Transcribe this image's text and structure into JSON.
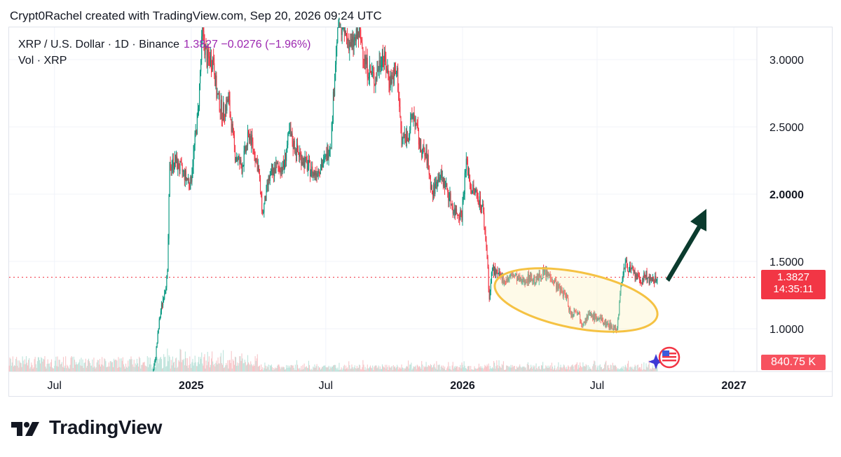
{
  "header": {
    "text": "Crypt0Rachel created with TradingView.com, Sep 20, 2026 09:24 UTC"
  },
  "legend": {
    "symbol": "XRP / U.S. Dollar · 1D · Binance",
    "values": "1.3827  −0.0276 (−1.96%)",
    "volume": "Vol · XRP"
  },
  "price_tag": {
    "price": "1.3827",
    "countdown": "14:35:11",
    "color": "#f23645"
  },
  "volume_tag": {
    "text": "840.75 K",
    "color": "#f7525f"
  },
  "footer": {
    "brand": "TradingView"
  },
  "colors": {
    "up": "#089981",
    "down": "#f23645",
    "ellipse": "#f5c243",
    "arrow": "#0b3b2e",
    "last_line": "#f23645"
  },
  "chart_data": {
    "type": "candlestick",
    "symbol": "XRP / U.S. Dollar",
    "interval": "1D",
    "exchange": "Binance",
    "last_price": 1.3827,
    "change": -0.0276,
    "change_pct": -1.96,
    "ylim": [
      0.72,
      3.3
    ],
    "y_ticks": [
      {
        "value": 1.0,
        "label": "1.0000"
      },
      {
        "value": 1.5,
        "label": "1.5000"
      },
      {
        "value": 2.0,
        "label": "2.0000"
      },
      {
        "value": 2.5,
        "label": "2.5000"
      },
      {
        "value": 3.0,
        "label": "3.0000"
      }
    ],
    "xlim": [
      "2024-05-01",
      "2027-02-01"
    ],
    "x_ticks": [
      {
        "date": "2024-07-01",
        "label": "Jul",
        "bold": false
      },
      {
        "date": "2025-01-01",
        "label": "2025",
        "bold": true
      },
      {
        "date": "2025-07-01",
        "label": "Jul",
        "bold": false
      },
      {
        "date": "2026-01-01",
        "label": "2026",
        "bold": true
      },
      {
        "date": "2026-07-01",
        "label": "Jul",
        "bold": false
      },
      {
        "date": "2027-01-01",
        "label": "2027",
        "bold": true
      }
    ],
    "close_path": [
      [
        "2024-05-01",
        0.52
      ],
      [
        "2024-11-05",
        0.52
      ],
      [
        "2024-11-13",
        0.75
      ],
      [
        "2024-11-20",
        1.1
      ],
      [
        "2024-11-30",
        1.4
      ],
      [
        "2024-12-03",
        2.2
      ],
      [
        "2024-12-10",
        2.25
      ],
      [
        "2024-12-22",
        2.15
      ],
      [
        "2024-12-31",
        2.08
      ],
      [
        "2025-01-06",
        2.4
      ],
      [
        "2025-01-10",
        2.6
      ],
      [
        "2025-01-16",
        3.2
      ],
      [
        "2025-01-22",
        3.0
      ],
      [
        "2025-01-31",
        3.0
      ],
      [
        "2025-02-04",
        2.75
      ],
      [
        "2025-02-12",
        2.6
      ],
      [
        "2025-02-20",
        2.7
      ],
      [
        "2025-03-01",
        2.3
      ],
      [
        "2025-03-10",
        2.2
      ],
      [
        "2025-03-20",
        2.45
      ],
      [
        "2025-04-01",
        2.2
      ],
      [
        "2025-04-07",
        1.85
      ],
      [
        "2025-04-15",
        2.1
      ],
      [
        "2025-04-25",
        2.2
      ],
      [
        "2025-05-05",
        2.2
      ],
      [
        "2025-05-13",
        2.45
      ],
      [
        "2025-05-20",
        2.35
      ],
      [
        "2025-06-01",
        2.25
      ],
      [
        "2025-06-15",
        2.15
      ],
      [
        "2025-06-30",
        2.25
      ],
      [
        "2025-07-08",
        2.4
      ],
      [
        "2025-07-12",
        2.8
      ],
      [
        "2025-07-18",
        3.35
      ],
      [
        "2025-07-25",
        3.2
      ],
      [
        "2025-08-05",
        3.1
      ],
      [
        "2025-08-15",
        3.2
      ],
      [
        "2025-08-25",
        2.95
      ],
      [
        "2025-09-05",
        2.85
      ],
      [
        "2025-09-15",
        3.05
      ],
      [
        "2025-09-25",
        2.85
      ],
      [
        "2025-10-05",
        2.9
      ],
      [
        "2025-10-11",
        2.4
      ],
      [
        "2025-10-20",
        2.45
      ],
      [
        "2025-10-27",
        2.6
      ],
      [
        "2025-11-05",
        2.35
      ],
      [
        "2025-11-15",
        2.25
      ],
      [
        "2025-11-21",
        2.0
      ],
      [
        "2025-12-01",
        2.15
      ],
      [
        "2025-12-10",
        2.05
      ],
      [
        "2025-12-20",
        1.88
      ],
      [
        "2025-12-31",
        1.85
      ],
      [
        "2026-01-06",
        2.25
      ],
      [
        "2026-01-12",
        2.05
      ],
      [
        "2026-01-20",
        2.0
      ],
      [
        "2026-01-28",
        1.9
      ],
      [
        "2026-02-03",
        1.55
      ],
      [
        "2026-02-06",
        1.22
      ],
      [
        "2026-02-10",
        1.45
      ],
      [
        "2026-02-20",
        1.38
      ],
      [
        "2026-03-01",
        1.36
      ],
      [
        "2026-03-10",
        1.4
      ],
      [
        "2026-03-20",
        1.35
      ],
      [
        "2026-04-01",
        1.38
      ],
      [
        "2026-04-10",
        1.36
      ],
      [
        "2026-04-20",
        1.42
      ],
      [
        "2026-05-01",
        1.38
      ],
      [
        "2026-05-10",
        1.3
      ],
      [
        "2026-05-20",
        1.25
      ],
      [
        "2026-05-27",
        1.1
      ],
      [
        "2026-06-03",
        1.15
      ],
      [
        "2026-06-10",
        1.05
      ],
      [
        "2026-06-20",
        1.1
      ],
      [
        "2026-07-01",
        1.08
      ],
      [
        "2026-07-10",
        1.05
      ],
      [
        "2026-07-20",
        1.02
      ],
      [
        "2026-07-28",
        1.0
      ],
      [
        "2026-08-01",
        1.25
      ],
      [
        "2026-08-04",
        1.4
      ],
      [
        "2026-08-08",
        1.48
      ],
      [
        "2026-08-18",
        1.42
      ],
      [
        "2026-08-28",
        1.35
      ],
      [
        "2026-09-05",
        1.4
      ],
      [
        "2026-09-12",
        1.34
      ],
      [
        "2026-09-20",
        1.3827
      ]
    ]
  }
}
